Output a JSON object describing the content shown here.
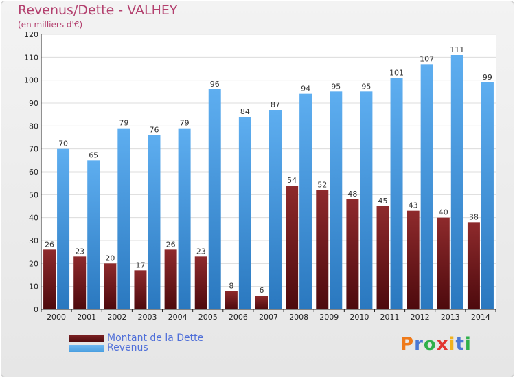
{
  "chart_data": {
    "type": "bar",
    "title": "Revenus/Dette - VALHEY",
    "subtitle": "(en milliers d'€)",
    "categories": [
      "2000",
      "2001",
      "2002",
      "2003",
      "2004",
      "2005",
      "2006",
      "2007",
      "2008",
      "2009",
      "2010",
      "2011",
      "2012",
      "2013",
      "2014"
    ],
    "series": [
      {
        "name": "Montant de la Dette",
        "color": "#7a1f22",
        "values": [
          26,
          23,
          20,
          17,
          26,
          23,
          8,
          6,
          54,
          52,
          48,
          45,
          43,
          40,
          38
        ]
      },
      {
        "name": "Revenus",
        "color": "#4a9fe0",
        "values": [
          70,
          65,
          79,
          76,
          79,
          96,
          84,
          87,
          94,
          95,
          95,
          101,
          107,
          111,
          99
        ]
      }
    ],
    "ylim": [
      0,
      120
    ],
    "yticks": [
      0,
      10,
      20,
      30,
      40,
      50,
      60,
      70,
      80,
      90,
      100,
      110,
      120
    ],
    "grid": true,
    "legend": "bottom-left"
  },
  "logo": {
    "text": "Proxiti",
    "colors": [
      "#ef7a1a",
      "#4a78d4",
      "#2fb04a",
      "#e2352f",
      "#f0b21d",
      "#4a78d4",
      "#2fb04a"
    ]
  }
}
